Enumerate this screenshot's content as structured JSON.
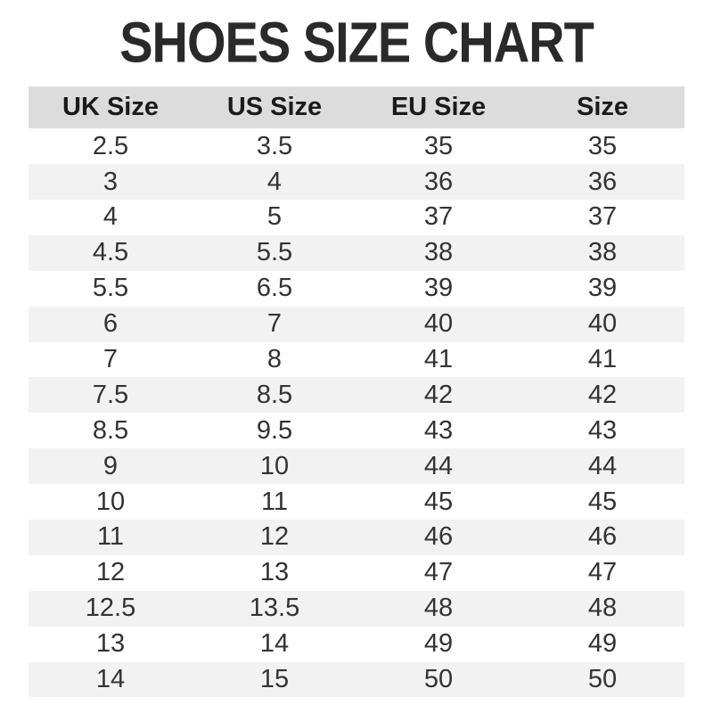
{
  "chart_data": {
    "type": "table",
    "title": "SHOES SIZE CHART",
    "columns": [
      "UK Size",
      "US Size",
      "EU Size",
      "Size"
    ],
    "rows": [
      [
        "2.5",
        "3.5",
        "35",
        "35"
      ],
      [
        "3",
        "4",
        "36",
        "36"
      ],
      [
        "4",
        "5",
        "37",
        "37"
      ],
      [
        "4.5",
        "5.5",
        "38",
        "38"
      ],
      [
        "5.5",
        "6.5",
        "39",
        "39"
      ],
      [
        "6",
        "7",
        "40",
        "40"
      ],
      [
        "7",
        "8",
        "41",
        "41"
      ],
      [
        "7.5",
        "8.5",
        "42",
        "42"
      ],
      [
        "8.5",
        "9.5",
        "43",
        "43"
      ],
      [
        "9",
        "10",
        "44",
        "44"
      ],
      [
        "10",
        "11",
        "45",
        "45"
      ],
      [
        "11",
        "12",
        "46",
        "46"
      ],
      [
        "12",
        "13",
        "47",
        "47"
      ],
      [
        "12.5",
        "13.5",
        "48",
        "48"
      ],
      [
        "13",
        "14",
        "49",
        "49"
      ],
      [
        "14",
        "15",
        "50",
        "50"
      ]
    ],
    "layout": {
      "stripe_pattern": "even rows shaded",
      "alignment": "center",
      "grid": "off"
    }
  },
  "colors": {
    "title_text": "#2a2a2a",
    "header_bg": "#dcdcdc",
    "header_text": "#1a1a1a",
    "stripe_bg": "#f2f2f2",
    "cell_text": "#333333",
    "page_bg": "#ffffff"
  }
}
